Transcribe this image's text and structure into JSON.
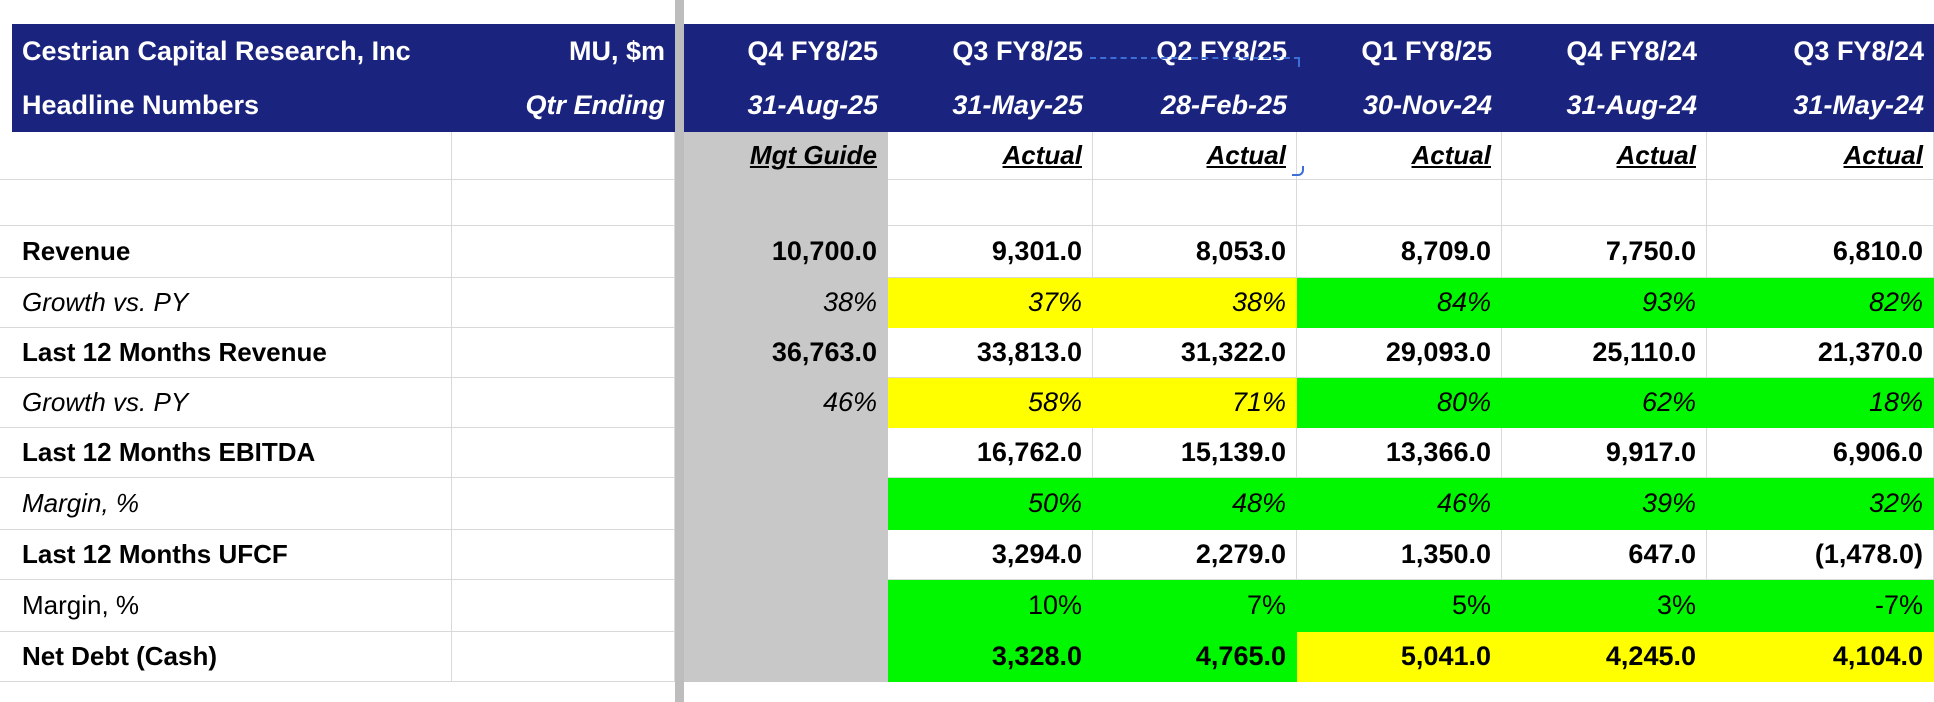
{
  "header": {
    "company": "Cestrian Capital Research, Inc",
    "subtitle": "Headline Numbers",
    "ticker_units": "MU, $m",
    "qtr_ending": "Qtr Ending",
    "periods": [
      {
        "quarter": "Q4 FY8/25",
        "date": "31-Aug-25",
        "status": "Mgt Guide"
      },
      {
        "quarter": "Q3 FY8/25",
        "date": "31-May-25",
        "status": "Actual"
      },
      {
        "quarter": "Q2 FY8/25",
        "date": "28-Feb-25",
        "status": "Actual"
      },
      {
        "quarter": "Q1 FY8/25",
        "date": "30-Nov-24",
        "status": "Actual"
      },
      {
        "quarter": "Q4 FY8/24",
        "date": "31-Aug-24",
        "status": "Actual"
      },
      {
        "quarter": "Q3 FY8/24",
        "date": "31-May-24",
        "status": "Actual"
      }
    ]
  },
  "rows": [
    {
      "label": "Revenue",
      "style": "bold",
      "values": [
        "10,700.0",
        "9,301.0",
        "8,053.0",
        "8,709.0",
        "7,750.0",
        "6,810.0"
      ],
      "fills": [
        "guide",
        "",
        "",
        "",
        "",
        ""
      ]
    },
    {
      "label": "Growth vs. PY",
      "style": "italic",
      "values": [
        "38%",
        "37%",
        "38%",
        "84%",
        "93%",
        "82%"
      ],
      "fills": [
        "guide",
        "yellow",
        "yellow",
        "green",
        "green",
        "green"
      ]
    },
    {
      "label": "Last 12 Months Revenue",
      "style": "bold",
      "values": [
        "36,763.0",
        "33,813.0",
        "31,322.0",
        "29,093.0",
        "25,110.0",
        "21,370.0"
      ],
      "fills": [
        "guide",
        "",
        "",
        "",
        "",
        ""
      ]
    },
    {
      "label": "Growth vs. PY",
      "style": "italic",
      "values": [
        "46%",
        "58%",
        "71%",
        "80%",
        "62%",
        "18%"
      ],
      "fills": [
        "guide",
        "yellow",
        "yellow",
        "green",
        "green",
        "green"
      ]
    },
    {
      "label": "Last 12 Months EBITDA",
      "style": "bold",
      "values": [
        "",
        "16,762.0",
        "15,139.0",
        "13,366.0",
        "9,917.0",
        "6,906.0"
      ],
      "fills": [
        "guide",
        "",
        "",
        "",
        "",
        ""
      ]
    },
    {
      "label": "Margin, %",
      "style": "italic",
      "values": [
        "",
        "50%",
        "48%",
        "46%",
        "39%",
        "32%"
      ],
      "fills": [
        "guide",
        "green",
        "green",
        "green",
        "green",
        "green"
      ]
    },
    {
      "label": "Last 12 Months UFCF",
      "style": "bold",
      "values": [
        "",
        "3,294.0",
        "2,279.0",
        "1,350.0",
        "647.0",
        "(1,478.0)"
      ],
      "fills": [
        "guide",
        "",
        "",
        "",
        "",
        ""
      ]
    },
    {
      "label": "Margin, %",
      "style": "plain",
      "values": [
        "",
        "10%",
        "7%",
        "5%",
        "3%",
        "-7%"
      ],
      "fills": [
        "guide",
        "green",
        "green",
        "green",
        "green",
        "green"
      ]
    },
    {
      "label": "Net Debt (Cash)",
      "style": "bold",
      "values": [
        "",
        "3,328.0",
        "4,765.0",
        "5,041.0",
        "4,245.0",
        "4,104.0"
      ],
      "fills": [
        "guide",
        "green",
        "green",
        "yellow",
        "yellow",
        "yellow"
      ]
    }
  ],
  "colors": {
    "header_bg": "#1a237e",
    "guide_gray": "#c8c8c8",
    "highlight_yellow": "#ffff00",
    "highlight_green": "#00f700"
  }
}
